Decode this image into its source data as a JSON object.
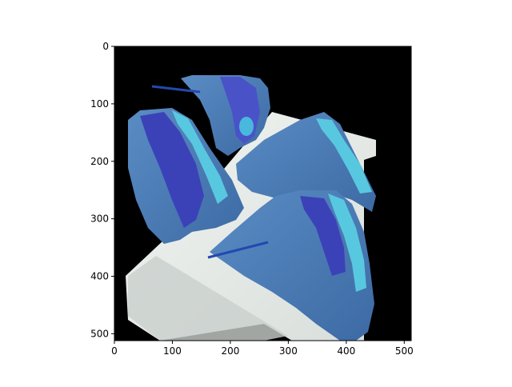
{
  "chart_data": {
    "type": "image",
    "xlim": [
      0,
      512
    ],
    "ylim": [
      512,
      0
    ],
    "x_ticks": [
      0,
      100,
      200,
      300,
      400,
      500
    ],
    "y_ticks": [
      0,
      100,
      200,
      300,
      400,
      500
    ],
    "x_tick_labels": [
      "0",
      "100",
      "200",
      "300",
      "400",
      "500"
    ],
    "y_tick_labels": [
      "0",
      "100",
      "200",
      "300",
      "400",
      "500"
    ],
    "grid": false,
    "image_description_colors": {
      "background": "#000000",
      "plate": "#e8ece8",
      "bread": "#4a78b0",
      "filling_light": "#58c8e0",
      "filling_dark": "#3b42b8"
    }
  }
}
